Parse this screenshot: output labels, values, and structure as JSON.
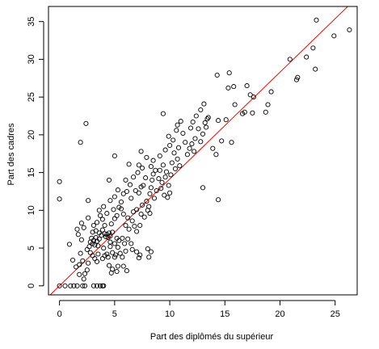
{
  "chart_data": {
    "type": "scatter",
    "xlabel": "Part des diplômés du supérieur",
    "ylabel": "Part des cadres",
    "xlim": [
      -1,
      27
    ],
    "ylim": [
      -1.2,
      37
    ],
    "x_ticks": [
      0,
      5,
      10,
      15,
      20,
      25
    ],
    "y_ticks": [
      0,
      5,
      10,
      15,
      20,
      25,
      30,
      35
    ],
    "grid": false,
    "legend": "none",
    "marker": "open-circle",
    "colors": {
      "points": "#000000",
      "regression_line": "#ff0000",
      "axes": "#000000"
    },
    "regression_line": {
      "intercept": 0,
      "slope": 1.415
    },
    "points": [
      [
        0,
        0
      ],
      [
        0.5,
        0
      ],
      [
        1.0,
        0
      ],
      [
        1.3,
        0
      ],
      [
        1.6,
        0
      ],
      [
        2.1,
        0
      ],
      [
        2.3,
        0
      ],
      [
        3.1,
        0
      ],
      [
        3.4,
        0
      ],
      [
        3.7,
        0
      ],
      [
        3.9,
        0
      ],
      [
        4.0,
        0
      ],
      [
        0,
        13.8
      ],
      [
        0,
        11.5
      ],
      [
        1.9,
        19.0
      ],
      [
        2.4,
        21.5
      ],
      [
        0.9,
        5.5
      ],
      [
        1.2,
        3.4
      ],
      [
        1.5,
        2.5
      ],
      [
        1.8,
        2.8
      ],
      [
        1.8,
        1.5
      ],
      [
        2.2,
        0.9
      ],
      [
        2.3,
        1.6
      ],
      [
        2.5,
        2.1
      ],
      [
        2.6,
        3.0
      ],
      [
        2.1,
        3.3
      ],
      [
        1.9,
        4.3
      ],
      [
        2.0,
        6.1
      ],
      [
        1.7,
        6.8
      ],
      [
        1.6,
        7.5
      ],
      [
        2.2,
        7.7
      ],
      [
        2.0,
        8.3
      ],
      [
        2.6,
        9.0
      ],
      [
        2.6,
        11.3
      ],
      [
        2.5,
        4.8
      ],
      [
        2.7,
        5.2
      ],
      [
        2.8,
        5.8
      ],
      [
        2.9,
        6.3
      ],
      [
        3.0,
        5.6
      ],
      [
        3.1,
        6.0
      ],
      [
        3.2,
        5.4
      ],
      [
        3.3,
        6.4
      ],
      [
        3.4,
        5.9
      ],
      [
        3.5,
        5.3
      ],
      [
        3.6,
        6.2
      ],
      [
        2.8,
        4.4
      ],
      [
        3.0,
        4.0
      ],
      [
        3.2,
        3.6
      ],
      [
        3.4,
        3.2
      ],
      [
        3.5,
        4.2
      ],
      [
        3.0,
        7.1
      ],
      [
        3.3,
        7.3
      ],
      [
        3.6,
        7.0
      ],
      [
        3.8,
        6.7
      ],
      [
        3.9,
        7.4
      ],
      [
        4.1,
        6.9
      ],
      [
        4.2,
        6.5
      ],
      [
        4.3,
        6.8
      ],
      [
        4.4,
        6.4
      ],
      [
        4.5,
        7.0
      ],
      [
        4.6,
        6.6
      ],
      [
        4.8,
        7.1
      ],
      [
        3.1,
        8.0
      ],
      [
        3.4,
        8.4
      ],
      [
        3.7,
        9.3
      ],
      [
        3.9,
        8.8
      ],
      [
        3.6,
        10.0
      ],
      [
        4.0,
        10.5
      ],
      [
        4.3,
        9.6
      ],
      [
        4.1,
        8.0
      ],
      [
        3.9,
        3.6
      ],
      [
        4.1,
        4.0
      ],
      [
        4.3,
        4.2
      ],
      [
        4.4,
        3.8
      ],
      [
        4.0,
        5.0
      ],
      [
        4.6,
        5.2
      ],
      [
        4.8,
        4.4
      ],
      [
        5.0,
        3.8
      ],
      [
        5.1,
        4.1
      ],
      [
        5.5,
        4.3
      ],
      [
        5.7,
        3.8
      ],
      [
        6.0,
        4.6
      ],
      [
        4.5,
        2.7
      ],
      [
        4.8,
        2.2
      ],
      [
        4.7,
        1.7
      ],
      [
        5.2,
        1.9
      ],
      [
        5.3,
        2.6
      ],
      [
        5.8,
        2.6
      ],
      [
        6.1,
        2.0
      ],
      [
        4.6,
        5.8
      ],
      [
        5.0,
        5.6
      ],
      [
        5.3,
        5.1
      ],
      [
        5.4,
        6.0
      ],
      [
        5.2,
        6.3
      ],
      [
        5.7,
        6.3
      ],
      [
        5.9,
        5.6
      ],
      [
        6.2,
        6.2
      ],
      [
        6.5,
        5.6
      ],
      [
        6.6,
        4.8
      ],
      [
        7.0,
        4.5
      ],
      [
        7.2,
        3.7
      ],
      [
        7.3,
        4.1
      ],
      [
        8.1,
        3.8
      ],
      [
        8.3,
        4.5
      ],
      [
        8.0,
        4.9
      ],
      [
        4.7,
        8.2
      ],
      [
        5.0,
        8.9
      ],
      [
        5.2,
        9.3
      ],
      [
        4.9,
        10.1
      ],
      [
        4.6,
        11.3
      ],
      [
        5.0,
        11.8
      ],
      [
        5.4,
        10.4
      ],
      [
        5.6,
        11.1
      ],
      [
        5.8,
        12.2
      ],
      [
        6.1,
        12.5
      ],
      [
        5.3,
        12.7
      ],
      [
        4.5,
        14.0
      ],
      [
        5.0,
        17.2
      ],
      [
        5.6,
        10.2
      ],
      [
        5.8,
        9.5
      ],
      [
        6.2,
        9.0
      ],
      [
        6.0,
        8.0
      ],
      [
        6.3,
        7.5
      ],
      [
        6.6,
        8.6
      ],
      [
        6.8,
        7.9
      ],
      [
        7.0,
        7.2
      ],
      [
        7.3,
        8.0
      ],
      [
        6.7,
        9.8
      ],
      [
        7.0,
        10.1
      ],
      [
        7.4,
        9.5
      ],
      [
        7.7,
        9.1
      ],
      [
        7.5,
        10.7
      ],
      [
        8.0,
        10.0
      ],
      [
        8.2,
        9.6
      ],
      [
        8.1,
        10.5
      ],
      [
        7.9,
        11.2
      ],
      [
        6.5,
        11.6
      ],
      [
        6.9,
        12.6
      ],
      [
        7.2,
        12.3
      ],
      [
        7.4,
        13.1
      ],
      [
        6.4,
        13.4
      ],
      [
        6.0,
        14.0
      ],
      [
        6.7,
        14.4
      ],
      [
        7.1,
        15.0
      ],
      [
        7.5,
        15.6
      ],
      [
        7.8,
        14.3
      ],
      [
        7.6,
        13.3
      ],
      [
        8.2,
        12.2
      ],
      [
        8.3,
        13.0
      ],
      [
        8.6,
        11.6
      ],
      [
        8.4,
        14.0
      ],
      [
        8.5,
        14.8
      ],
      [
        8.8,
        12.6
      ],
      [
        6.3,
        16.1
      ],
      [
        7.2,
        16.0
      ],
      [
        7.4,
        17.8
      ],
      [
        7.9,
        17.0
      ],
      [
        8.3,
        15.8
      ],
      [
        8.5,
        16.6
      ],
      [
        8.7,
        15.3
      ],
      [
        9.0,
        14.2
      ],
      [
        9.2,
        12.9
      ],
      [
        9.5,
        12.0
      ],
      [
        9.8,
        11.7
      ],
      [
        10.0,
        12.3
      ],
      [
        9.3,
        13.7
      ],
      [
        9.6,
        14.4
      ],
      [
        9.9,
        13.3
      ],
      [
        9.1,
        15.3
      ],
      [
        9.4,
        16.0
      ],
      [
        9.7,
        15.1
      ],
      [
        10.1,
        14.7
      ],
      [
        10.2,
        16.3
      ],
      [
        10.5,
        15.5
      ],
      [
        10.7,
        16.8
      ],
      [
        10.9,
        15.9
      ],
      [
        9.1,
        17.2
      ],
      [
        9.6,
        18.0
      ],
      [
        10.0,
        18.6
      ],
      [
        10.4,
        17.6
      ],
      [
        10.8,
        18.3
      ],
      [
        9.9,
        19.8
      ],
      [
        10.3,
        19.3
      ],
      [
        10.6,
        20.6
      ],
      [
        11.2,
        20.2
      ],
      [
        10.7,
        21.3
      ],
      [
        11.4,
        19.0
      ],
      [
        9.4,
        22.8
      ],
      [
        11.0,
        21.8
      ],
      [
        11.6,
        17.4
      ],
      [
        11.8,
        18.2
      ],
      [
        12.0,
        18.8
      ],
      [
        12.2,
        17.8
      ],
      [
        12.3,
        19.5
      ],
      [
        12.6,
        20.8
      ],
      [
        12.8,
        19.1
      ],
      [
        13.0,
        20.1
      ],
      [
        13.2,
        21.6
      ],
      [
        13.3,
        21.0
      ],
      [
        13.5,
        22.3
      ],
      [
        12.4,
        22.5
      ],
      [
        13.1,
        24.1
      ],
      [
        12.8,
        23.3
      ],
      [
        11.9,
        20.9
      ],
      [
        12.1,
        21.7
      ],
      [
        13.4,
        22.1
      ],
      [
        13.0,
        13.0
      ],
      [
        13.9,
        18.2
      ],
      [
        14.2,
        17.4
      ],
      [
        14.4,
        11.4
      ],
      [
        14.7,
        19.2
      ],
      [
        14.3,
        27.9
      ],
      [
        14.4,
        21.9
      ],
      [
        15.6,
        19.0
      ],
      [
        15.1,
        22.0
      ],
      [
        15.3,
        26.2
      ],
      [
        15.4,
        28.2
      ],
      [
        15.8,
        26.4
      ],
      [
        15.9,
        24.0
      ],
      [
        16.6,
        22.8
      ],
      [
        16.8,
        23.0
      ],
      [
        17.0,
        26.5
      ],
      [
        17.3,
        25.3
      ],
      [
        17.6,
        25.0
      ],
      [
        17.5,
        22.9
      ],
      [
        18.7,
        23.0
      ],
      [
        18.9,
        24.0
      ],
      [
        19.2,
        25.7
      ],
      [
        20.9,
        30.0
      ],
      [
        21.5,
        27.3
      ],
      [
        21.6,
        27.6
      ],
      [
        22.4,
        30.3
      ],
      [
        23.0,
        31.5
      ],
      [
        23.2,
        28.7
      ],
      [
        23.3,
        35.2
      ],
      [
        24.9,
        33.1
      ],
      [
        26.3,
        33.9
      ]
    ]
  }
}
